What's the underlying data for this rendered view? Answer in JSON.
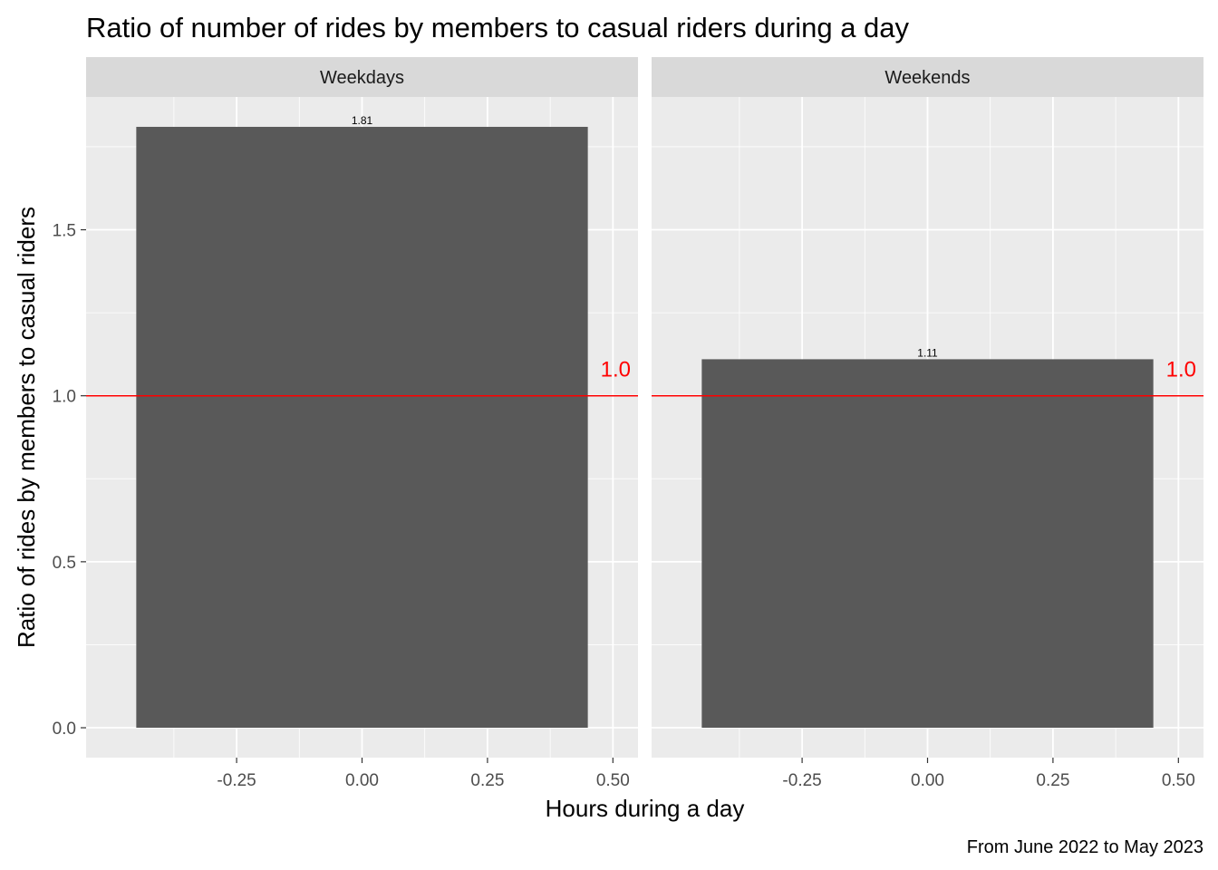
{
  "chart_data": {
    "type": "bar",
    "title": "Ratio of number of rides by members to casual riders during a day",
    "xlabel": "Hours during a day",
    "ylabel": "Ratio of rides by members to casual riders",
    "caption": "From June 2022 to May 2023",
    "xlim": [
      -0.55,
      0.55
    ],
    "ylim": [
      -0.09,
      1.9
    ],
    "x_ticks": [
      -0.25,
      0.0,
      0.25,
      0.5
    ],
    "x_tick_labels": [
      "-0.25",
      "0.00",
      "0.25",
      "0.50"
    ],
    "y_ticks": [
      0.0,
      0.5,
      1.0,
      1.5
    ],
    "y_tick_labels": [
      "0.0",
      "0.5",
      "1.0",
      "1.5"
    ],
    "grid": true,
    "bar_color": "#595959",
    "panel_bg": "#ebebeb",
    "strip_bg": "#d9d9d9",
    "reference_line": {
      "value": 1.0,
      "label": "1.0",
      "color": "#ff0000"
    },
    "panels": [
      {
        "facet": "Weekdays",
        "x": 0.0,
        "value": 1.81,
        "label": "1.81"
      },
      {
        "facet": "Weekends",
        "x": 0.0,
        "value": 1.11,
        "label": "1.11"
      }
    ]
  }
}
